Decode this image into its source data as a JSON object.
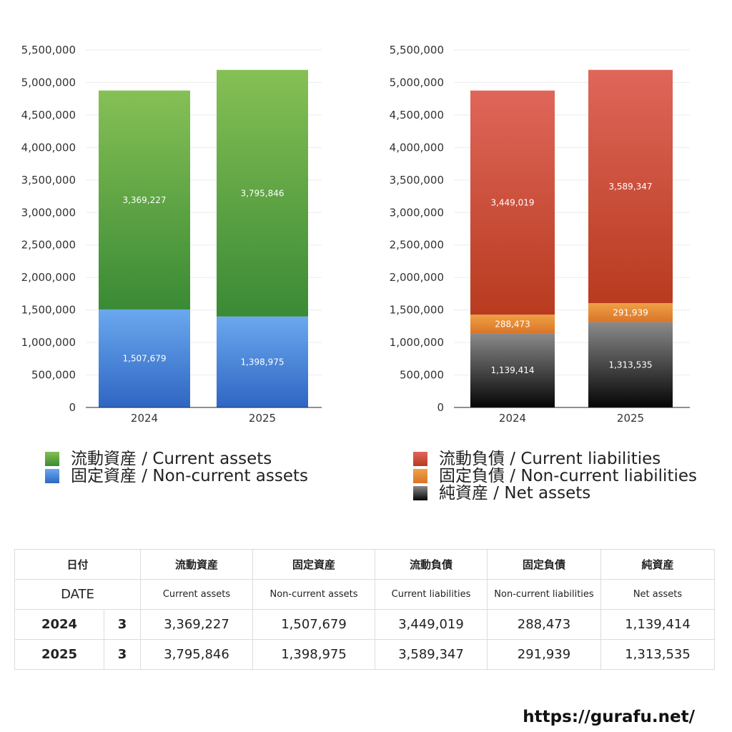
{
  "colors": {
    "current_assets": [
      "#86c055",
      "#3a8a35"
    ],
    "noncurrent_assets": [
      "#6aa8ee",
      "#2f66c3"
    ],
    "current_liabilities": [
      "#df665a",
      "#b83b1f"
    ],
    "noncurrent_liabilities": [
      "#f0a045",
      "#d97528"
    ],
    "net_assets": [
      "#8a8a8a",
      "#050505"
    ]
  },
  "chart_data": [
    {
      "type": "bar",
      "stacked": true,
      "categories": [
        "2024",
        "2025"
      ],
      "ylim": [
        0,
        5500000
      ],
      "yticks": [
        0,
        500000,
        1000000,
        1500000,
        2000000,
        2500000,
        3000000,
        3500000,
        4000000,
        4500000,
        5000000,
        5500000
      ],
      "ytick_labels": [
        "0",
        "500,000",
        "1,000,000",
        "1,500,000",
        "2,000,000",
        "2,500,000",
        "3,000,000",
        "3,500,000",
        "4,000,000",
        "4,500,000",
        "5,000,000",
        "5,500,000"
      ],
      "grid": true,
      "series": [
        {
          "name": "固定資産 / Non-current assets",
          "color_key": "noncurrent_assets",
          "values": [
            1507679,
            1398975
          ],
          "labels": [
            "1,507,679",
            "1,398,975"
          ]
        },
        {
          "name": "流動資産 / Current assets",
          "color_key": "current_assets",
          "values": [
            3369227,
            3795846
          ],
          "labels": [
            "3,369,227",
            "3,795,846"
          ]
        }
      ],
      "legend": [
        {
          "label": "流動資産 / Current assets",
          "color_key": "current_assets"
        },
        {
          "label": "固定資産 / Non-current assets",
          "color_key": "noncurrent_assets"
        }
      ]
    },
    {
      "type": "bar",
      "stacked": true,
      "categories": [
        "2024",
        "2025"
      ],
      "ylim": [
        0,
        5500000
      ],
      "yticks": [
        0,
        500000,
        1000000,
        1500000,
        2000000,
        2500000,
        3000000,
        3500000,
        4000000,
        4500000,
        5000000,
        5500000
      ],
      "ytick_labels": [
        "0",
        "500,000",
        "1,000,000",
        "1,500,000",
        "2,000,000",
        "2,500,000",
        "3,000,000",
        "3,500,000",
        "4,000,000",
        "4,500,000",
        "5,000,000",
        "5,500,000"
      ],
      "grid": true,
      "series": [
        {
          "name": "純資産 / Net assets",
          "color_key": "net_assets",
          "values": [
            1139414,
            1313535
          ],
          "labels": [
            "1,139,414",
            "1,313,535"
          ]
        },
        {
          "name": "固定負債 / Non-current liabilities",
          "color_key": "noncurrent_liabilities",
          "values": [
            288473,
            291939
          ],
          "labels": [
            "288,473",
            "291,939"
          ]
        },
        {
          "name": "流動負債 / Current liabilities",
          "color_key": "current_liabilities",
          "values": [
            3449019,
            3589347
          ],
          "labels": [
            "3,449,019",
            "3,589,347"
          ]
        }
      ],
      "legend": [
        {
          "label": "流動負債 / Current liabilities",
          "color_key": "current_liabilities"
        },
        {
          "label": "固定負債 / Non-current liabilities",
          "color_key": "noncurrent_liabilities"
        },
        {
          "label": "純資産 / Net assets",
          "color_key": "net_assets"
        }
      ]
    }
  ],
  "table": {
    "header_jp": [
      "日付",
      "",
      "流動資産",
      "固定資産",
      "流動負債",
      "固定負債",
      "純資産"
    ],
    "header_en_date": "DATE",
    "header_en": [
      "Current assets",
      "Non-current assets",
      "Current liabilities",
      "Non-current liabilities",
      "Net assets"
    ],
    "rows": [
      {
        "year": "2024",
        "month": "3",
        "values": [
          "3,369,227",
          "1,507,679",
          "3,449,019",
          "288,473",
          "1,139,414"
        ]
      },
      {
        "year": "2025",
        "month": "3",
        "values": [
          "3,795,846",
          "1,398,975",
          "3,589,347",
          "291,939",
          "1,313,535"
        ]
      }
    ]
  },
  "footer": {
    "url": "https://gurafu.net/"
  }
}
